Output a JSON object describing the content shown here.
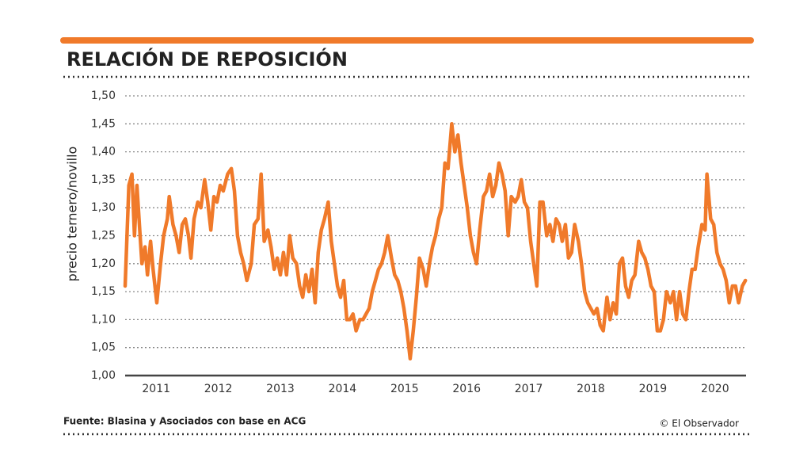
{
  "chart_data": {
    "type": "line",
    "title": "RELACIÓN DE REPOSICIÓN",
    "ylabel": "precio ternero/novillo",
    "source": "Fuente: Blasina y Asociados con base en ACG",
    "credit": "© El Observador",
    "xlim": [
      2011,
      2021
    ],
    "xticks": [
      {
        "value": 2011.5,
        "label": "2011"
      },
      {
        "value": 2012.5,
        "label": "2012"
      },
      {
        "value": 2013.5,
        "label": "2013"
      },
      {
        "value": 2014.5,
        "label": "2014"
      },
      {
        "value": 2015.5,
        "label": "2015"
      },
      {
        "value": 2016.5,
        "label": "2016"
      },
      {
        "value": 2017.5,
        "label": "2017"
      },
      {
        "value": 2018.5,
        "label": "2018"
      },
      {
        "value": 2019.5,
        "label": "2019"
      },
      {
        "value": 2020.5,
        "label": "2020"
      }
    ],
    "ylim": [
      1.0,
      1.5
    ],
    "yticks": [
      {
        "value": 1.0,
        "label": "1,00"
      },
      {
        "value": 1.05,
        "label": "1,05"
      },
      {
        "value": 1.1,
        "label": "1,10"
      },
      {
        "value": 1.15,
        "label": "1,15"
      },
      {
        "value": 1.2,
        "label": "1,20"
      },
      {
        "value": 1.25,
        "label": "1,25"
      },
      {
        "value": 1.3,
        "label": "1,30"
      },
      {
        "value": 1.35,
        "label": "1,35"
      },
      {
        "value": 1.4,
        "label": "1,40"
      },
      {
        "value": 1.45,
        "label": "1,45"
      },
      {
        "value": 1.5,
        "label": "1,50"
      }
    ],
    "grid": true,
    "series": [
      {
        "color": "#f07a2a",
        "x": [
          2011.0,
          2011.06,
          2011.11,
          2011.15,
          2011.19,
          2011.23,
          2011.27,
          2011.32,
          2011.36,
          2011.41,
          2011.45,
          2011.51,
          2011.57,
          2011.62,
          2011.68,
          2011.71,
          2011.77,
          2011.82,
          2011.87,
          2011.92,
          2011.97,
          2012.02,
          2012.06,
          2012.11,
          2012.17,
          2012.22,
          2012.28,
          2012.33,
          2012.38,
          2012.43,
          2012.48,
          2012.53,
          2012.58,
          2012.65,
          2012.71,
          2012.76,
          2012.81,
          2012.86,
          2012.91,
          2012.96,
          2013.03,
          2013.08,
          2013.14,
          2013.19,
          2013.24,
          2013.3,
          2013.35,
          2013.4,
          2013.45,
          2013.5,
          2013.55,
          2013.6,
          2013.65,
          2013.7,
          2013.76,
          2013.81,
          2013.86,
          2013.91,
          2013.96,
          2014.01,
          2014.06,
          2014.11,
          2014.16,
          2014.21,
          2014.27,
          2014.32,
          2014.37,
          2014.42,
          2014.47,
          2014.52,
          2014.57,
          2014.62,
          2014.67,
          2014.72,
          2014.78,
          2014.83,
          2014.88,
          2014.93,
          2014.98,
          2015.03,
          2015.08,
          2015.13,
          2015.18,
          2015.23,
          2015.29,
          2015.34,
          2015.39,
          2015.44,
          2015.49,
          2015.54,
          2015.59,
          2015.64,
          2015.69,
          2015.74,
          2015.8,
          2015.85,
          2015.9,
          2015.95,
          2016.0,
          2016.05,
          2016.1,
          2016.15,
          2016.2,
          2016.26,
          2016.31,
          2016.36,
          2016.41,
          2016.46,
          2016.51,
          2016.56,
          2016.61,
          2016.66,
          2016.71,
          2016.77,
          2016.82,
          2016.87,
          2016.92,
          2016.97,
          2017.02,
          2017.07,
          2017.12,
          2017.17,
          2017.22,
          2017.28,
          2017.33,
          2017.38,
          2017.43,
          2017.48,
          2017.53,
          2017.58,
          2017.63,
          2017.68,
          2017.73,
          2017.79,
          2017.84,
          2017.89,
          2017.94,
          2017.99,
          2018.04,
          2018.09,
          2018.14,
          2018.19,
          2018.24,
          2018.3,
          2018.35,
          2018.4,
          2018.45,
          2018.5,
          2018.55,
          2018.6,
          2018.65,
          2018.7,
          2018.76,
          2018.81,
          2018.86,
          2018.91,
          2018.96,
          2019.01,
          2019.06,
          2019.11,
          2019.16,
          2019.21,
          2019.27,
          2019.32,
          2019.37,
          2019.42,
          2019.47,
          2019.52,
          2019.57,
          2019.62,
          2019.67,
          2019.72,
          2019.78,
          2019.83,
          2019.88,
          2019.93,
          2019.98,
          2020.03,
          2020.08,
          2020.13,
          2020.18,
          2020.23,
          2020.29,
          2020.34,
          2020.37,
          2020.43,
          2020.48,
          2020.53,
          2020.58,
          2020.63,
          2020.68,
          2020.73,
          2020.78,
          2020.83,
          2020.88,
          2020.94,
          2020.99
        ],
        "values": [
          1.16,
          1.34,
          1.36,
          1.25,
          1.34,
          1.27,
          1.2,
          1.23,
          1.18,
          1.24,
          1.19,
          1.13,
          1.2,
          1.25,
          1.28,
          1.32,
          1.27,
          1.25,
          1.22,
          1.27,
          1.28,
          1.25,
          1.21,
          1.28,
          1.31,
          1.3,
          1.35,
          1.31,
          1.26,
          1.32,
          1.31,
          1.34,
          1.33,
          1.36,
          1.37,
          1.33,
          1.25,
          1.22,
          1.2,
          1.17,
          1.2,
          1.27,
          1.28,
          1.36,
          1.24,
          1.26,
          1.23,
          1.19,
          1.21,
          1.18,
          1.22,
          1.18,
          1.25,
          1.21,
          1.2,
          1.16,
          1.14,
          1.18,
          1.15,
          1.19,
          1.13,
          1.22,
          1.26,
          1.28,
          1.31,
          1.24,
          1.2,
          1.16,
          1.14,
          1.17,
          1.1,
          1.1,
          1.11,
          1.08,
          1.1,
          1.1,
          1.11,
          1.12,
          1.15,
          1.17,
          1.19,
          1.2,
          1.22,
          1.25,
          1.21,
          1.18,
          1.17,
          1.15,
          1.12,
          1.08,
          1.03,
          1.08,
          1.14,
          1.21,
          1.19,
          1.16,
          1.2,
          1.23,
          1.25,
          1.28,
          1.3,
          1.38,
          1.37,
          1.45,
          1.4,
          1.43,
          1.38,
          1.34,
          1.3,
          1.25,
          1.22,
          1.2,
          1.26,
          1.32,
          1.33,
          1.36,
          1.32,
          1.34,
          1.38,
          1.36,
          1.33,
          1.25,
          1.32,
          1.31,
          1.32,
          1.35,
          1.31,
          1.3,
          1.24,
          1.2,
          1.16,
          1.31,
          1.31,
          1.25,
          1.27,
          1.24,
          1.28,
          1.27,
          1.24,
          1.27,
          1.21,
          1.22,
          1.27,
          1.24,
          1.2,
          1.15,
          1.13,
          1.12,
          1.11,
          1.12,
          1.09,
          1.08,
          1.14,
          1.1,
          1.13,
          1.11,
          1.2,
          1.21,
          1.16,
          1.14,
          1.17,
          1.18,
          1.24,
          1.22,
          1.21,
          1.19,
          1.16,
          1.15,
          1.08,
          1.08,
          1.1,
          1.15,
          1.13,
          1.15,
          1.1,
          1.15,
          1.11,
          1.1,
          1.15,
          1.19,
          1.19,
          1.23,
          1.27,
          1.26,
          1.36,
          1.28,
          1.27,
          1.22,
          1.2,
          1.19,
          1.17,
          1.13,
          1.16,
          1.16,
          1.13,
          1.16,
          1.17
        ]
      }
    ]
  }
}
